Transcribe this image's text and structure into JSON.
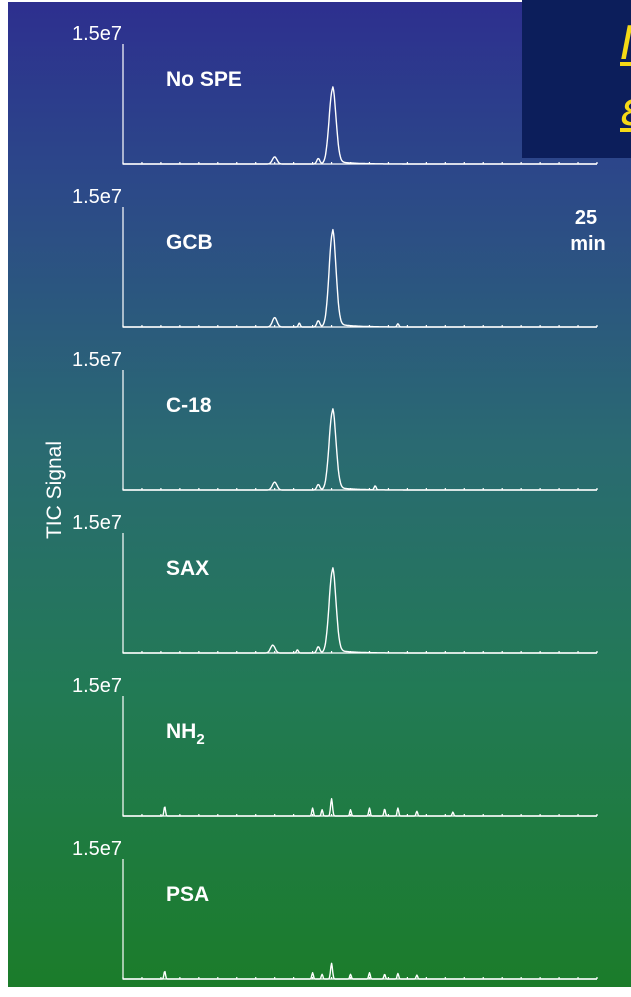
{
  "title_lines": [
    "I",
    "ε"
  ],
  "time_label": {
    "value": "25",
    "unit": "min"
  },
  "chart_data": {
    "type": "line",
    "ylabel": "TIC Signal",
    "xlabel": "",
    "xlim": [
      0,
      25
    ],
    "panels": [
      {
        "label": "No SPE",
        "ytick": "1.5e7",
        "ylim": [
          0,
          15000000.0
        ],
        "baseline_points": [
          [
            6.5,
            40000.0
          ]
        ],
        "peaks": [
          {
            "x": 8.0,
            "y": 900000.0,
            "w": 0.12
          },
          {
            "x": 10.3,
            "y": 700000.0,
            "w": 0.08
          },
          {
            "x": 11.05,
            "y": 9500000.0,
            "w": 0.18
          }
        ]
      },
      {
        "label": "GCB",
        "ytick": "1.5e7",
        "ylim": [
          0,
          15000000.0
        ],
        "baseline_points": [
          [
            5.0,
            30000.0
          ],
          [
            9.3,
            500000.0
          ],
          [
            14.5,
            400000.0
          ]
        ],
        "peaks": [
          {
            "x": 8.0,
            "y": 1200000.0,
            "w": 0.12
          },
          {
            "x": 10.3,
            "y": 800000.0,
            "w": 0.08
          },
          {
            "x": 11.05,
            "y": 12000000.0,
            "w": 0.18
          },
          {
            "x": 9.3,
            "y": 500000.0,
            "w": 0.05
          },
          {
            "x": 14.5,
            "y": 400000.0,
            "w": 0.05
          }
        ]
      },
      {
        "label": "C-18",
        "ytick": "1.5e7",
        "ylim": [
          0,
          15000000.0
        ],
        "baseline_points": [],
        "peaks": [
          {
            "x": 8.0,
            "y": 1000000.0,
            "w": 0.12
          },
          {
            "x": 10.3,
            "y": 700000.0,
            "w": 0.08
          },
          {
            "x": 11.05,
            "y": 10000000.0,
            "w": 0.18
          },
          {
            "x": 13.3,
            "y": 500000.0,
            "w": 0.05
          }
        ]
      },
      {
        "label": "SAX",
        "ytick": "1.5e7",
        "ylim": [
          0,
          15000000.0
        ],
        "baseline_points": [],
        "peaks": [
          {
            "x": 7.9,
            "y": 1000000.0,
            "w": 0.12
          },
          {
            "x": 10.3,
            "y": 800000.0,
            "w": 0.08
          },
          {
            "x": 11.05,
            "y": 10500000.0,
            "w": 0.18
          },
          {
            "x": 9.2,
            "y": 400000.0,
            "w": 0.05
          }
        ]
      },
      {
        "label": "NH",
        "label_sub": "2",
        "ytick": "1.5e7",
        "ylim": [
          0,
          15000000.0
        ],
        "baseline_points": [],
        "peaks": [
          {
            "x": 2.2,
            "y": 1200000.0,
            "w": 0.04
          },
          {
            "x": 10.0,
            "y": 1000000.0,
            "w": 0.04
          },
          {
            "x": 10.5,
            "y": 800000.0,
            "w": 0.04
          },
          {
            "x": 11.0,
            "y": 2200000.0,
            "w": 0.05
          },
          {
            "x": 12.0,
            "y": 800000.0,
            "w": 0.04
          },
          {
            "x": 13.0,
            "y": 1000000.0,
            "w": 0.04
          },
          {
            "x": 13.8,
            "y": 900000.0,
            "w": 0.04
          },
          {
            "x": 14.5,
            "y": 1000000.0,
            "w": 0.04
          },
          {
            "x": 15.5,
            "y": 600000.0,
            "w": 0.04
          },
          {
            "x": 17.4,
            "y": 500000.0,
            "w": 0.04
          }
        ]
      },
      {
        "label": "PSA",
        "ytick": "1.5e7",
        "ylim": [
          0,
          15000000.0
        ],
        "baseline_points": [],
        "peaks": [
          {
            "x": 2.2,
            "y": 1000000.0,
            "w": 0.04
          },
          {
            "x": 10.0,
            "y": 800000.0,
            "w": 0.04
          },
          {
            "x": 10.5,
            "y": 600000.0,
            "w": 0.04
          },
          {
            "x": 11.0,
            "y": 2000000.0,
            "w": 0.05
          },
          {
            "x": 12.0,
            "y": 600000.0,
            "w": 0.04
          },
          {
            "x": 13.0,
            "y": 800000.0,
            "w": 0.04
          },
          {
            "x": 13.8,
            "y": 600000.0,
            "w": 0.04
          },
          {
            "x": 14.5,
            "y": 700000.0,
            "w": 0.04
          },
          {
            "x": 15.5,
            "y": 500000.0,
            "w": 0.04
          }
        ]
      }
    ]
  }
}
